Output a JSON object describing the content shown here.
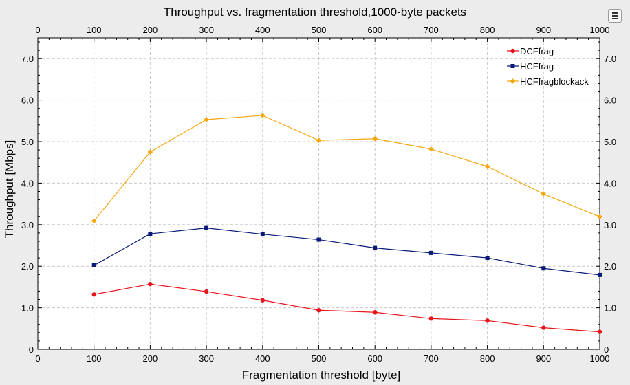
{
  "chart_data": {
    "type": "line",
    "title": "Throughput vs. fragmentation threshold,1000-byte packets",
    "xlabel": "Fragmentation threshold [byte]",
    "ylabel": "Throughput [Mbps]",
    "xlim": [
      0,
      1000
    ],
    "ylim": [
      0,
      7.5
    ],
    "x_ticks": [
      "0",
      "100",
      "200",
      "300",
      "400",
      "500",
      "600",
      "700",
      "800",
      "900",
      "1000"
    ],
    "y_ticks": [
      "0",
      "1.0",
      "2.0",
      "3.0",
      "4.0",
      "5.0",
      "6.0",
      "7.0"
    ],
    "grid": true,
    "legend_position": "top-right",
    "x": [
      100,
      200,
      300,
      400,
      500,
      600,
      700,
      800,
      900,
      1000
    ],
    "series": [
      {
        "name": "DCFfrag",
        "color": "#e8141c",
        "marker": "circle",
        "values": [
          1.32,
          1.57,
          1.39,
          1.18,
          0.94,
          0.89,
          0.74,
          0.69,
          0.52,
          0.42
        ]
      },
      {
        "name": "HCFfrag",
        "color": "#0b1a78",
        "marker": "square",
        "values": [
          2.02,
          2.78,
          2.92,
          2.77,
          2.64,
          2.44,
          2.32,
          2.2,
          1.95,
          1.79
        ]
      },
      {
        "name": "HCFfragblockack",
        "color": "#f5a712",
        "marker": "diamond",
        "values": [
          3.09,
          4.75,
          5.53,
          5.63,
          5.03,
          5.07,
          4.82,
          4.4,
          3.74,
          3.19
        ]
      }
    ]
  },
  "toolbar": {
    "options_icon": "list-options-icon"
  }
}
